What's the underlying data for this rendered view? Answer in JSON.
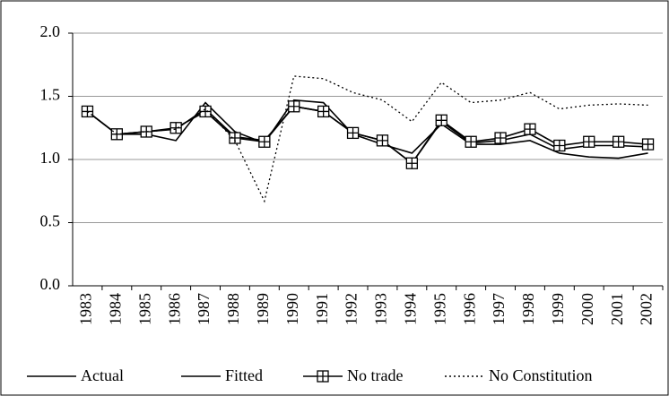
{
  "chart_data": {
    "type": "line",
    "categories": [
      "1983",
      "1984",
      "1985",
      "1986",
      "1987",
      "1988",
      "1989",
      "1990",
      "1991",
      "1992",
      "1993",
      "1994",
      "1995",
      "1996",
      "1997",
      "1998",
      "1999",
      "2000",
      "2001",
      "2002"
    ],
    "series": [
      {
        "name": "Actual",
        "color": "#000000",
        "dash": "solid",
        "marker": "none",
        "values": [
          1.38,
          1.2,
          1.2,
          1.15,
          1.45,
          1.22,
          1.13,
          1.47,
          1.45,
          1.2,
          1.12,
          1.05,
          1.28,
          1.12,
          1.12,
          1.15,
          1.05,
          1.02,
          1.01,
          1.05
        ]
      },
      {
        "name": "Fitted",
        "color": "#000000",
        "dash": "solid",
        "marker": "none",
        "values": [
          1.38,
          1.2,
          1.22,
          1.24,
          1.4,
          1.18,
          1.15,
          1.42,
          1.38,
          1.21,
          1.15,
          0.97,
          1.3,
          1.13,
          1.15,
          1.2,
          1.08,
          1.11,
          1.11,
          1.1
        ]
      },
      {
        "name": "No trade",
        "color": "#000000",
        "dash": "solid",
        "marker": "square-cross",
        "values": [
          1.38,
          1.2,
          1.22,
          1.25,
          1.38,
          1.17,
          1.14,
          1.42,
          1.38,
          1.21,
          1.15,
          0.97,
          1.31,
          1.14,
          1.17,
          1.24,
          1.11,
          1.14,
          1.14,
          1.12
        ]
      },
      {
        "name": "No Constitution",
        "color": "#000000",
        "dash": "dotted",
        "marker": "none",
        "values": [
          1.38,
          1.2,
          1.22,
          1.24,
          1.4,
          1.15,
          0.67,
          1.66,
          1.64,
          1.53,
          1.47,
          1.3,
          1.61,
          1.45,
          1.47,
          1.53,
          1.4,
          1.43,
          1.44,
          1.43
        ]
      }
    ],
    "ylim": [
      0,
      2
    ],
    "yticks": [
      {
        "value": 0,
        "label": "0.0"
      },
      {
        "value": 0.5,
        "label": "0.5"
      },
      {
        "value": 1,
        "label": "1.0"
      },
      {
        "value": 1.5,
        "label": "1.5"
      },
      {
        "value": 2,
        "label": "2.0"
      }
    ],
    "grid": true,
    "legend": "bottom"
  }
}
